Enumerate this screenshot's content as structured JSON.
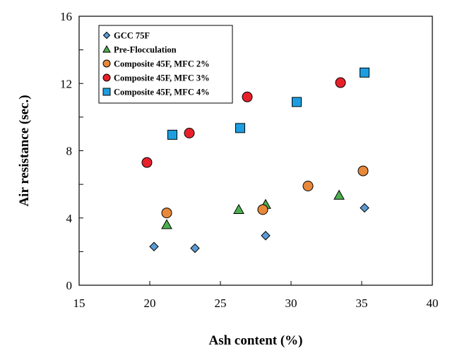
{
  "chart_data": {
    "type": "scatter",
    "title": "",
    "xlabel": "Ash content (%)",
    "ylabel": "Air resistance (sec.)",
    "xlim": [
      15,
      40
    ],
    "ylim": [
      0,
      16
    ],
    "xticks": [
      15,
      20,
      25,
      30,
      35,
      40
    ],
    "yticks": [
      0,
      4,
      8,
      12,
      16
    ],
    "grid": false,
    "legend_position": "top-left",
    "series": [
      {
        "name": "GCC 75F",
        "marker": "diamond",
        "color": "#5b9bd5",
        "points": [
          [
            20.3,
            2.3
          ],
          [
            23.2,
            2.2
          ],
          [
            28.2,
            2.95
          ],
          [
            35.2,
            4.6
          ]
        ]
      },
      {
        "name": "Pre-Flocculation",
        "marker": "triangle",
        "color": "#4caf50",
        "points": [
          [
            21.2,
            3.6
          ],
          [
            26.3,
            4.5
          ],
          [
            28.2,
            4.8
          ],
          [
            33.4,
            5.35
          ]
        ]
      },
      {
        "name": "Composite 45F, MFC 2%",
        "marker": "circle",
        "color": "#e8883a",
        "points": [
          [
            21.2,
            4.3
          ],
          [
            28.0,
            4.5
          ],
          [
            31.2,
            5.9
          ],
          [
            35.1,
            6.8
          ]
        ]
      },
      {
        "name": "Composite 45F, MFC 3%",
        "marker": "circle",
        "color": "#e8202a",
        "points": [
          [
            19.8,
            7.3
          ],
          [
            22.8,
            9.05
          ],
          [
            26.9,
            11.2
          ],
          [
            33.5,
            12.05
          ]
        ]
      },
      {
        "name": "Composite 45F, MFC 4%",
        "marker": "square",
        "color": "#1e9ee0",
        "points": [
          [
            21.6,
            8.95
          ],
          [
            26.4,
            9.35
          ],
          [
            30.4,
            10.9
          ],
          [
            35.2,
            12.65
          ]
        ]
      }
    ]
  }
}
